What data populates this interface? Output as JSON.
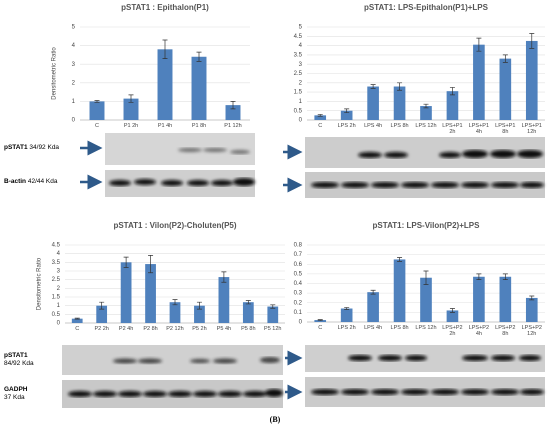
{
  "chart_data": [
    {
      "type": "bar",
      "title": "pSTAT1 : Epithalon(P1)",
      "y_label": "Densitometric Ratio",
      "categories": [
        "C",
        "P1 2h",
        "P1 4h",
        "P1 8h",
        "P1 12h"
      ],
      "values": [
        1.0,
        1.15,
        3.8,
        3.4,
        0.8
      ],
      "errors": [
        0.05,
        0.2,
        0.5,
        0.25,
        0.2
      ],
      "color": "#4f81bd",
      "ylim": [
        0,
        5
      ],
      "yticks": [
        0,
        1,
        2,
        3,
        4,
        5
      ],
      "grid": true
    },
    {
      "type": "bar",
      "title": "pSTAT1: LPS-Epithalon(P1)+LPS",
      "categories": [
        "C",
        "LPS 2h",
        "LPS 4h",
        "LPS 8h",
        "LPS 12h",
        "LPS+P1 2h",
        "LPS+P1 4h",
        "LPS+P1 8h",
        "LPS+P1 12h"
      ],
      "values": [
        0.25,
        0.5,
        1.8,
        1.8,
        0.75,
        1.55,
        4.05,
        3.3,
        4.25
      ],
      "errors": [
        0.05,
        0.1,
        0.1,
        0.2,
        0.1,
        0.2,
        0.35,
        0.2,
        0.4
      ],
      "color": "#4f81bd",
      "ylim": [
        0,
        5
      ],
      "yticks": [
        0,
        0.5,
        1,
        1.5,
        2,
        2.5,
        3,
        3.5,
        4,
        4.5,
        5
      ],
      "grid": true
    },
    {
      "type": "bar",
      "title": "pSTAT1 : Vilon(P2)-Choluten(P5)",
      "y_label": "Densitometric Ratio",
      "categories": [
        "C",
        "P2 2h",
        "P2 4h",
        "P2 8h",
        "P2 12h",
        "P5 2h",
        "P5 4h",
        "P5 8h",
        "P5 12h"
      ],
      "values": [
        0.25,
        1.0,
        3.5,
        3.4,
        1.2,
        1.0,
        2.65,
        1.2,
        0.95
      ],
      "errors": [
        0.03,
        0.2,
        0.3,
        0.5,
        0.15,
        0.2,
        0.3,
        0.1,
        0.1
      ],
      "color": "#4f81bd",
      "ylim": [
        0,
        4.5
      ],
      "yticks": [
        0,
        0.5,
        1,
        1.5,
        2,
        2.5,
        3,
        3.5,
        4,
        4.5
      ],
      "grid": true
    },
    {
      "type": "bar",
      "title": "pSTAT1: LPS-Vilon(P2)+LPS",
      "categories": [
        "C",
        "LPS 2h",
        "LPS 4h",
        "LPS 8h",
        "LPS 12h",
        "LPS+P2 2h",
        "LPS+P2 4h",
        "LPS+P2 8h",
        "LPS+P2 12h"
      ],
      "values": [
        0.02,
        0.14,
        0.31,
        0.65,
        0.46,
        0.12,
        0.47,
        0.47,
        0.25
      ],
      "errors": [
        0.005,
        0.01,
        0.02,
        0.02,
        0.07,
        0.02,
        0.03,
        0.03,
        0.02
      ],
      "color": "#4f81bd",
      "ylim": [
        0,
        0.8
      ],
      "yticks": [
        0,
        0.1,
        0.2,
        0.3,
        0.4,
        0.5,
        0.6,
        0.7,
        0.8
      ],
      "grid": true
    }
  ],
  "blot_labels": [
    {
      "protein": "pSTAT1",
      "size": "34/92 Kda"
    },
    {
      "protein": "B-actin",
      "size": "42/44 Kda"
    },
    {
      "protein": "pSTAT1",
      "size": "84/92 Kda"
    },
    {
      "protein": "GADPH",
      "size": "37 Kda"
    }
  ],
  "panel_label": "(B)"
}
